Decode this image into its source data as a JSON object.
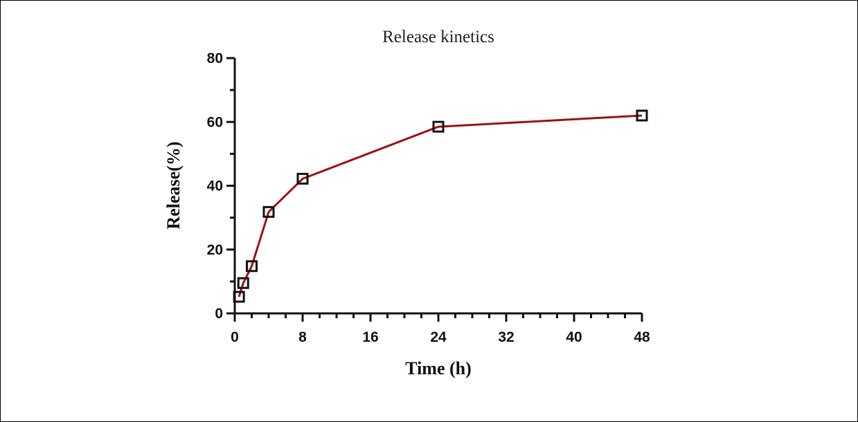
{
  "chart_data": {
    "type": "line",
    "title": "Release kinetics",
    "xlabel": "Time (h)",
    "ylabel": "Release(%)",
    "xlim": [
      0,
      48
    ],
    "ylim": [
      0,
      80
    ],
    "x_ticks": [
      0,
      8,
      16,
      24,
      32,
      40,
      48
    ],
    "y_ticks": [
      0,
      20,
      40,
      60,
      80
    ],
    "grid": false,
    "series": [
      {
        "x": [
          0.5,
          1,
          2,
          4,
          8,
          24,
          48
        ],
        "y": [
          5.2,
          9.5,
          14.8,
          31.8,
          42.2,
          58.5,
          62.0
        ],
        "line_color": "#a01010",
        "marker": "open-square",
        "marker_color": "#111111"
      }
    ]
  }
}
